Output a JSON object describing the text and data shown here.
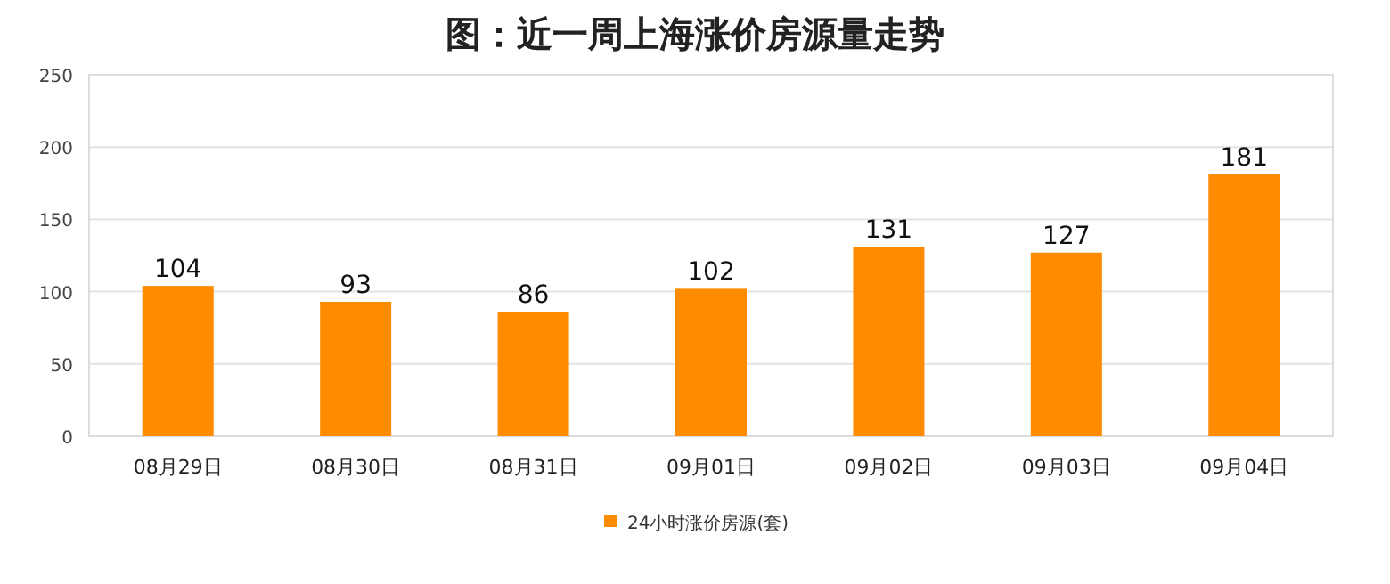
{
  "chart_data": {
    "type": "bar",
    "title": "图：近一周上海涨价房源量走势",
    "categories": [
      "08月29日",
      "08月30日",
      "08月31日",
      "09月01日",
      "09月02日",
      "09月03日",
      "09月04日"
    ],
    "series": [
      {
        "name": "24小时涨价房源(套)",
        "color": "#ff8c00",
        "values": [
          104,
          93,
          86,
          102,
          131,
          127,
          181
        ]
      }
    ],
    "ylim": [
      0,
      250
    ],
    "yticks": [
      0,
      50,
      100,
      150,
      200,
      250
    ],
    "grid": "y",
    "legend": "bottom",
    "data_labels": true
  }
}
